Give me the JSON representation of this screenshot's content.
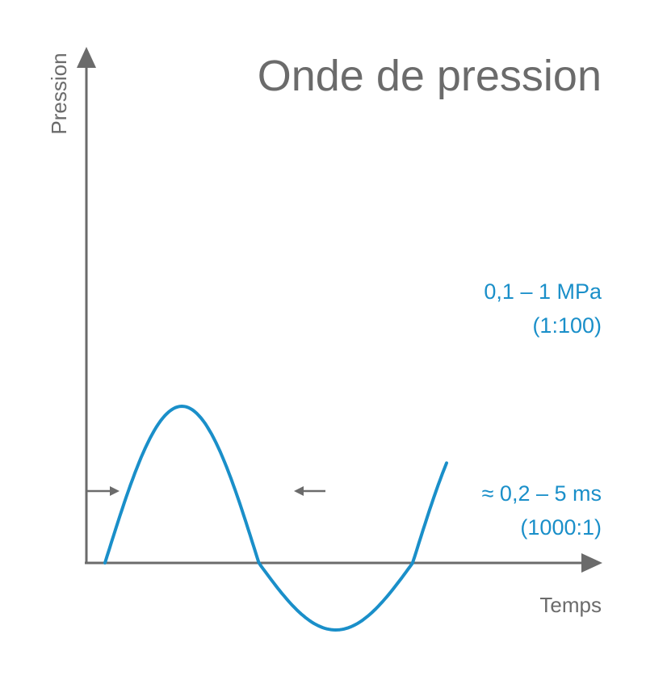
{
  "title": "Onde de pression",
  "axes": {
    "y_label": "Pression",
    "x_label": "Temps"
  },
  "annotations": {
    "pressure_range": "0,1 – 1 MPa",
    "pressure_ratio": "(1:100)",
    "duration_range": "≈ 0,2 – 5 ms",
    "duration_ratio": "(1000:1)"
  },
  "colors": {
    "axis": "#6b6b6b",
    "wave": "#1a8fc9",
    "annotation": "#1a8fc9",
    "text": "#6b6b6b"
  }
}
